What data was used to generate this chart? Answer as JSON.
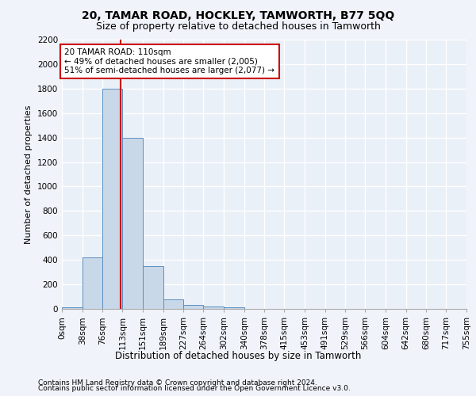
{
  "title1": "20, TAMAR ROAD, HOCKLEY, TAMWORTH, B77 5QQ",
  "title2": "Size of property relative to detached houses in Tamworth",
  "xlabel": "Distribution of detached houses by size in Tamworth",
  "ylabel": "Number of detached properties",
  "bin_edges": [
    0,
    38,
    76,
    113,
    151,
    189,
    227,
    264,
    302,
    340,
    378,
    415,
    453,
    491,
    529,
    566,
    604,
    642,
    680,
    717,
    755
  ],
  "bin_counts": [
    10,
    420,
    1800,
    1400,
    350,
    80,
    30,
    20,
    10,
    0,
    0,
    0,
    0,
    0,
    0,
    0,
    0,
    0,
    0,
    0
  ],
  "bar_color": "#c8d8e8",
  "bar_edge_color": "#5a8fc0",
  "property_size": 110,
  "vline_color": "#cc0000",
  "annotation_text": "20 TAMAR ROAD: 110sqm\n← 49% of detached houses are smaller (2,005)\n51% of semi-detached houses are larger (2,077) →",
  "annotation_box_color": "#ffffff",
  "annotation_border_color": "#cc0000",
  "ylim": [
    0,
    2200
  ],
  "yticks": [
    0,
    200,
    400,
    600,
    800,
    1000,
    1200,
    1400,
    1600,
    1800,
    2000,
    2200
  ],
  "bg_color": "#eaf0f8",
  "grid_color": "#ffffff",
  "footer_line1": "Contains HM Land Registry data © Crown copyright and database right 2024.",
  "footer_line2": "Contains public sector information licensed under the Open Government Licence v3.0.",
  "title1_fontsize": 10,
  "title2_fontsize": 9,
  "xlabel_fontsize": 8.5,
  "ylabel_fontsize": 8,
  "tick_fontsize": 7.5,
  "annotation_fontsize": 7.5,
  "footer_fontsize": 6.5,
  "fig_bg_color": "#f0f4fa"
}
